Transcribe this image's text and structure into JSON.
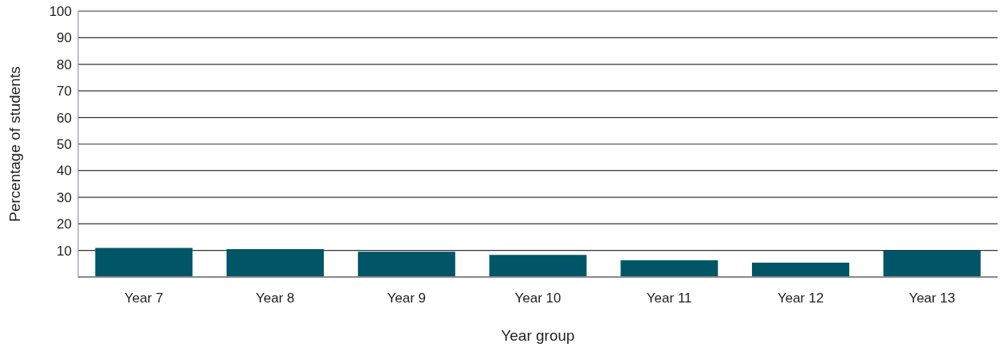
{
  "chart_data": {
    "type": "bar",
    "xlabel": "Year group",
    "ylabel": "Percentage of students",
    "categories": [
      "Year 7",
      "Year 8",
      "Year 9",
      "Year 10",
      "Year 11",
      "Year 12",
      "Year 13"
    ],
    "values": [
      10.9,
      10.5,
      9.5,
      8.3,
      6.3,
      5.4,
      10.0
    ],
    "color": "#005566",
    "ylim": [
      0,
      100
    ],
    "yticks": [
      10,
      20,
      30,
      40,
      50,
      60,
      70,
      80,
      90,
      100
    ],
    "grid": "y"
  }
}
